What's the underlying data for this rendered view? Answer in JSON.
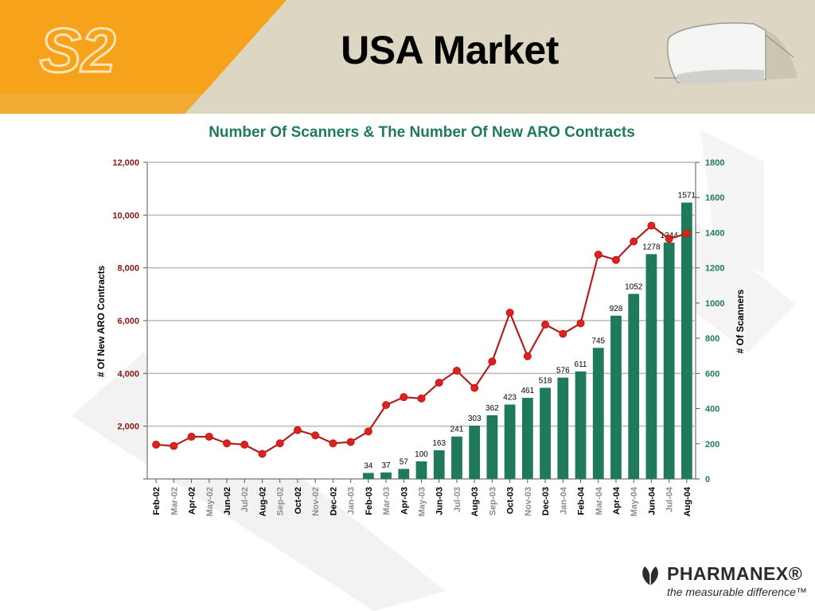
{
  "slide": {
    "title": "USA Market",
    "logo_text": "S2",
    "scanner_icon": "scanner-device-icon"
  },
  "footer": {
    "brand": "PHARMANEX®",
    "tagline": "the measurable difference™",
    "logo_icon": "pharmanex-leaf-icon"
  },
  "colors": {
    "orange": "#f7a21b",
    "bar_green": "#1e7a5a",
    "line_red": "#b71c1c",
    "marker_red": "#e0201b",
    "title_green": "#1e7a5a",
    "left_axis_red": "#8b1414"
  },
  "chart_data": {
    "type": "bar+line",
    "title": "Number Of Scanners & The Number Of New ARO Contracts",
    "categories": [
      "Feb-02",
      "Mar-02",
      "Apr-02",
      "May-02",
      "Jun-02",
      "Jul-02",
      "Aug-02",
      "Sep-02",
      "Oct-02",
      "Nov-02",
      "Dec-02",
      "Jan-03",
      "Feb-03",
      "Mar-03",
      "Apr-03",
      "May-03",
      "Jun-03",
      "Jul-03",
      "Aug-03",
      "Sep-03",
      "Oct-03",
      "Nov-03",
      "Dec-03",
      "Jan-04",
      "Feb-04",
      "Mar-04",
      "Apr-04",
      "May-04",
      "Jun-04",
      "Jul-04",
      "Aug-04"
    ],
    "left_axis": {
      "label": "# Of New ARO Contracts",
      "range": [
        0,
        12000
      ],
      "ticks": [
        0,
        2000,
        4000,
        6000,
        8000,
        10000,
        12000
      ],
      "tick_labels": [
        "",
        "2,000",
        "4,000",
        "6,000",
        "8,000",
        "10,000",
        "12,000"
      ]
    },
    "right_axis": {
      "label": "# Of Scanners",
      "range": [
        0,
        1800
      ],
      "ticks": [
        0,
        200,
        400,
        600,
        800,
        1000,
        1200,
        1400,
        1600,
        1800
      ],
      "tick_labels": [
        "0",
        "200",
        "400",
        "600",
        "800",
        "1000",
        "1200",
        "1400",
        "1600",
        "1800"
      ]
    },
    "series": [
      {
        "type": "bar",
        "axis": "right",
        "values": [
          null,
          null,
          null,
          null,
          null,
          null,
          null,
          null,
          null,
          null,
          null,
          null,
          34,
          37,
          57,
          100,
          163,
          241,
          303,
          362,
          423,
          461,
          518,
          576,
          611,
          745,
          928,
          1052,
          1278,
          1344,
          1571
        ],
        "labels": [
          "",
          "",
          "",
          "",
          "",
          "",
          "",
          "",
          "",
          "",
          "",
          "",
          "34",
          "37",
          "57",
          "100",
          "163",
          "241",
          "303",
          "362",
          "423",
          "461",
          "518",
          "576",
          "611",
          "745",
          "928",
          "1052",
          "1278",
          "1344",
          "1571"
        ]
      },
      {
        "type": "line",
        "axis": "left",
        "values": [
          1300,
          1250,
          1600,
          1600,
          1350,
          1300,
          950,
          1350,
          1850,
          1650,
          1350,
          1400,
          1800,
          2800,
          3100,
          3050,
          3650,
          4100,
          3450,
          4450,
          6300,
          4650,
          5850,
          5500,
          5900,
          8500,
          8300,
          9000,
          9600,
          9100,
          9300
        ]
      }
    ],
    "grid": true,
    "legend": "none"
  }
}
